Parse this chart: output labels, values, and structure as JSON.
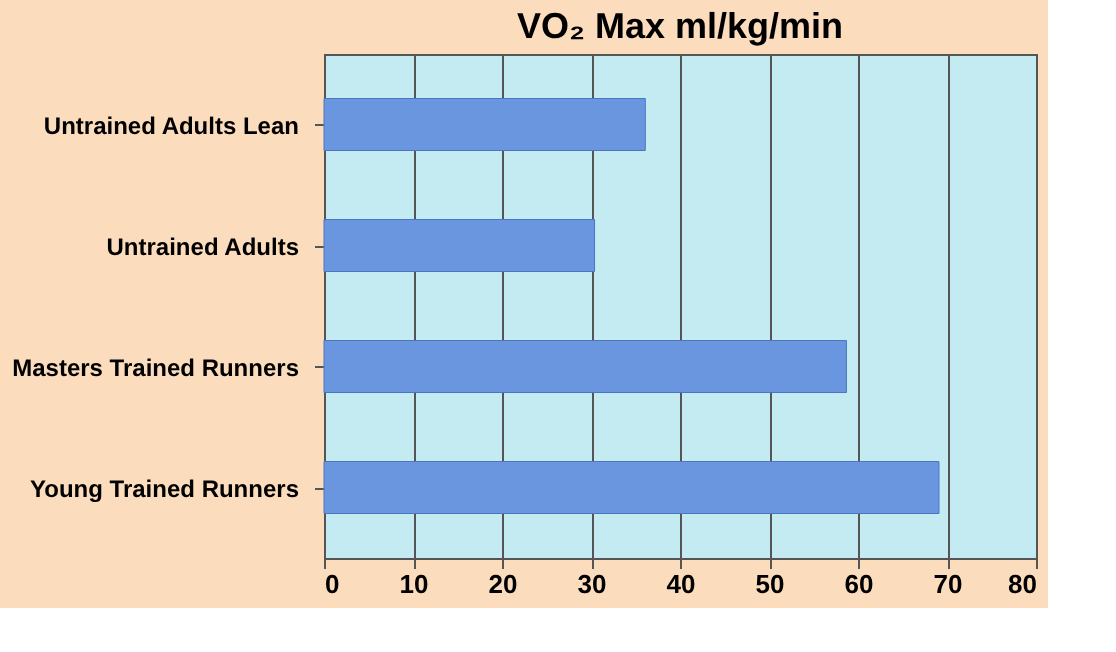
{
  "chart_data": {
    "type": "bar",
    "orientation": "horizontal",
    "title": "VO₂ Max ml/kg/min",
    "categories": [
      "Untrained Adults Lean",
      "Untrained Adults",
      "Masters Trained Runners",
      "Young Trained Runners"
    ],
    "values": [
      36.1,
      30.4,
      58.7,
      69.1
    ],
    "color": "#6a96e0",
    "xlim": [
      0,
      80
    ],
    "xticks": [
      0,
      10,
      20,
      30,
      40,
      50,
      60,
      70,
      80
    ],
    "grid": "x"
  }
}
